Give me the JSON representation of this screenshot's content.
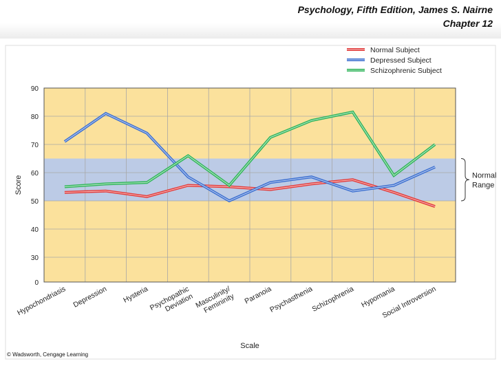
{
  "header": {
    "line1": "Psychology, Fifth Edition, James S. Nairne",
    "line2": "Chapter 12"
  },
  "copyright": "© Wadsworth, Cengage Learning",
  "chart_data": {
    "type": "line",
    "title": "",
    "xlabel": "Scale",
    "ylabel": "Score",
    "categories": [
      "Hypochondriasis",
      "Depression",
      "Hysteria",
      "Psychopathic Deviation",
      "Masculinity/ Femininity",
      "Paranoia",
      "Psychasthenia",
      "Schizophrenia",
      "Hypomania",
      "Social Introversion"
    ],
    "category_labels": [
      [
        "Hypochondriasis"
      ],
      [
        "Depression"
      ],
      [
        "Hysteria"
      ],
      [
        "Psychopathic",
        "Deviation"
      ],
      [
        "Masculinity/",
        "Femininity"
      ],
      [
        "Paranoia"
      ],
      [
        "Psychasthenia"
      ],
      [
        "Schizophrenia"
      ],
      [
        "Hypomania"
      ],
      [
        "Social Introversion"
      ]
    ],
    "y_ticks": [
      0,
      30,
      40,
      50,
      60,
      70,
      80,
      90
    ],
    "ylim": [
      0,
      90
    ],
    "normal_range": [
      50,
      65
    ],
    "normal_range_label": [
      "Normal",
      "Range"
    ],
    "legend_position": "top-right",
    "series": [
      {
        "name": "Normal Subject",
        "color": "#e23b3b",
        "values": [
          53,
          53.5,
          51.5,
          55.5,
          55,
          54,
          56,
          57.5,
          53,
          48
        ]
      },
      {
        "name": "Depressed Subject",
        "color": "#3b6fd0",
        "values": [
          71,
          81,
          74,
          58.5,
          50,
          56.5,
          58.5,
          53.5,
          55.5,
          62
        ]
      },
      {
        "name": "Schizophrenic Subject",
        "color": "#2fb55a",
        "values": [
          55,
          56,
          56.5,
          66,
          55.5,
          72.5,
          78.5,
          81.5,
          59,
          70
        ]
      }
    ],
    "colors": {
      "background": "#fbe19c",
      "normal_band": "#bccbe6",
      "grid": "#a7a7a7",
      "border": "#555555"
    }
  }
}
